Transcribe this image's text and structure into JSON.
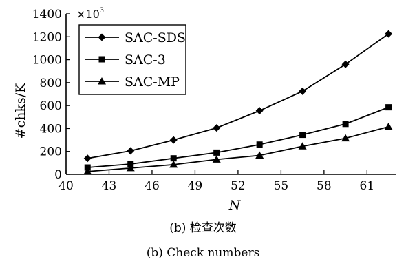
{
  "chart_data": {
    "type": "line",
    "x": [
      41.5,
      44.5,
      47.5,
      50.5,
      53.5,
      56.5,
      59.5,
      62.5
    ],
    "series": [
      {
        "name": "SAC-SDS",
        "marker": "diamond",
        "values": [
          140,
          205,
          300,
          405,
          555,
          725,
          960,
          1225
        ]
      },
      {
        "name": "SAC-3",
        "marker": "square",
        "values": [
          60,
          90,
          140,
          190,
          260,
          345,
          440,
          585
        ]
      },
      {
        "name": "SAC-MP",
        "marker": "triangle",
        "values": [
          25,
          55,
          85,
          130,
          165,
          245,
          315,
          415
        ]
      }
    ],
    "xlabel": "N",
    "ylabel": "#chks/K",
    "y_multiplier": "×10",
    "y_multiplier_exp": "3",
    "xlim": [
      40,
      63
    ],
    "ylim": [
      0,
      1400
    ],
    "xticks": [
      "40",
      "43",
      "46",
      "49",
      "52",
      "55",
      "58",
      "61"
    ],
    "yticks": [
      "0",
      "200",
      "400",
      "600",
      "800",
      "1000",
      "1200",
      "1400"
    ],
    "legend_position": "top-left",
    "grid": false
  },
  "captions": {
    "chinese": "(b) 检查次数",
    "english": "(b) Check numbers"
  }
}
